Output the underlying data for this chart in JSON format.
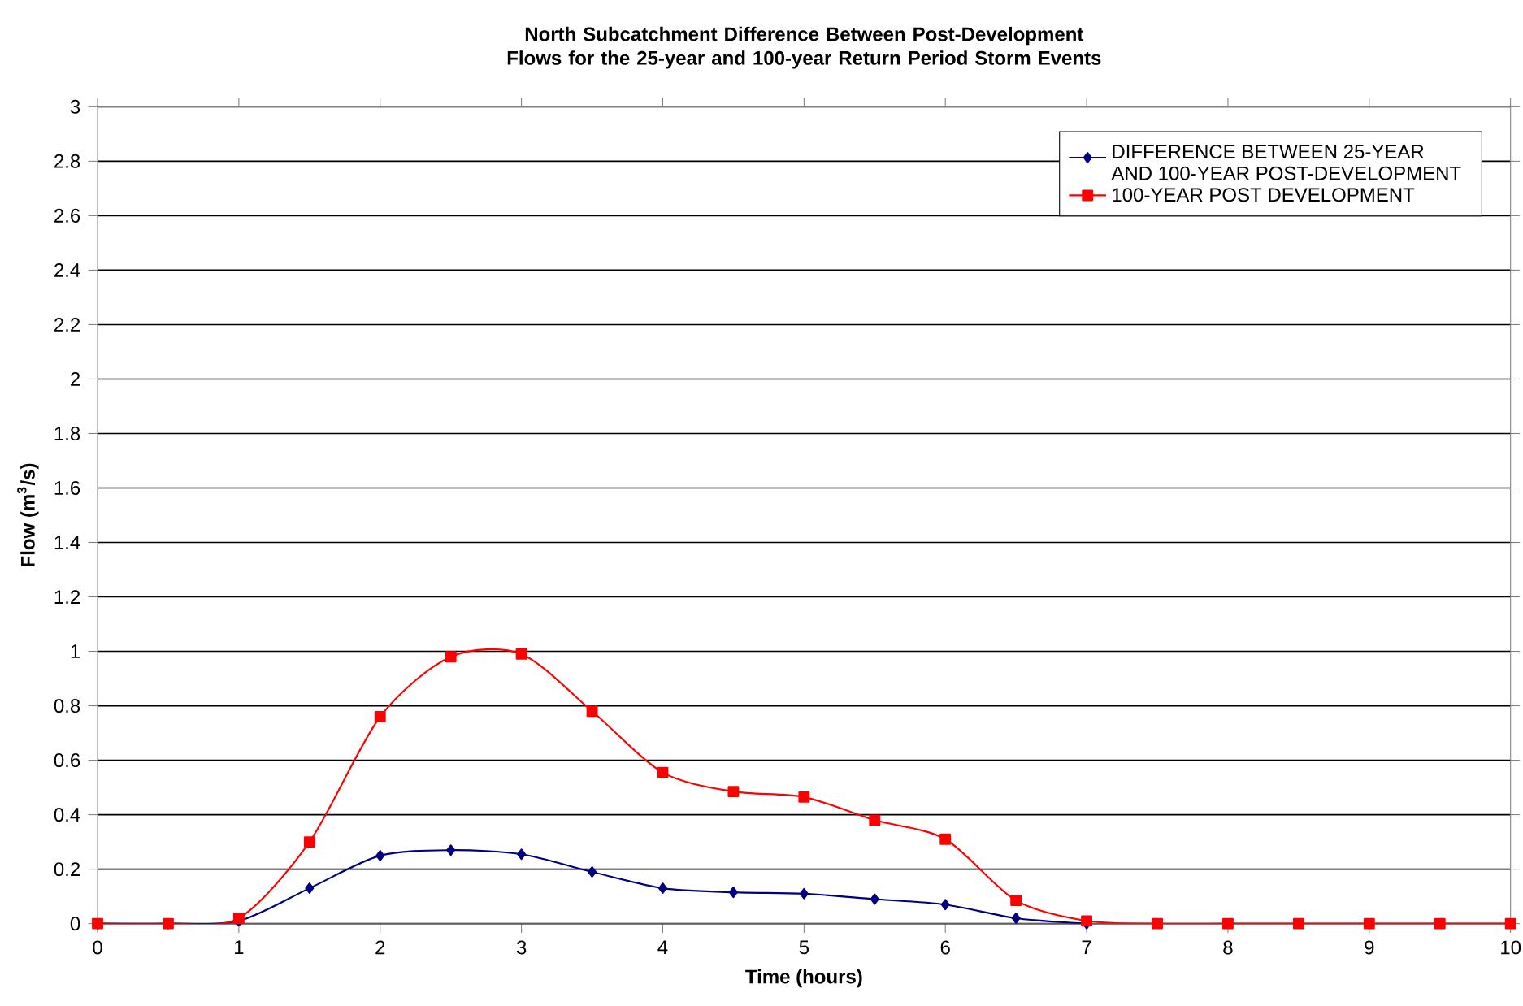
{
  "chart_data": {
    "type": "line",
    "title": "North Subcatchment Difference Between Post-Development Flows for the 25-year and 100-year Return Period Storm Events",
    "xlabel": "Time (hours)",
    "ylabel": "Flow (m$^{3}$/s)",
    "x": [
      0,
      0.5,
      1,
      1.5,
      2,
      2.5,
      3,
      3.5,
      4,
      4.5,
      5,
      5.5,
      6,
      6.5,
      7,
      7.5,
      8,
      8.5,
      9,
      9.5,
      10
    ],
    "series": [
      {
        "name": "DIFFERENCE BETWEEN 25-YEAR AND 100-YEAR POST-DEVELOPMENT",
        "color": "#000080",
        "marker": "diamond",
        "x": [
          0,
          0.5,
          1,
          1.5,
          2,
          2.5,
          3,
          3.5,
          4,
          4.5,
          5,
          5.5,
          6,
          6.5,
          7
        ],
        "values": [
          0,
          0,
          0.01,
          0.13,
          0.25,
          0.27,
          0.255,
          0.19,
          0.13,
          0.115,
          0.11,
          0.09,
          0.07,
          0.02,
          0
        ]
      },
      {
        "name": "100-YEAR POST DEVELOPMENT",
        "color": "#ff0000",
        "marker": "square",
        "values": [
          0,
          0,
          0.02,
          0.3,
          0.76,
          0.98,
          0.99,
          0.78,
          0.555,
          0.485,
          0.465,
          0.38,
          0.31,
          0.085,
          0.01,
          0,
          0,
          0,
          0,
          0,
          0
        ]
      }
    ],
    "xlim": [
      0,
      10
    ],
    "xticks": [
      0,
      1,
      2,
      3,
      4,
      5,
      6,
      7,
      8,
      9,
      10
    ],
    "ylim": [
      0,
      3
    ],
    "yticks": [
      0,
      0.2,
      0.4,
      0.6,
      0.8,
      1,
      1.2,
      1.4,
      1.6,
      1.8,
      2,
      2.2,
      2.4,
      2.6,
      2.8,
      3
    ],
    "grid": "y",
    "legend": "top right",
    "line_style": "solid"
  }
}
